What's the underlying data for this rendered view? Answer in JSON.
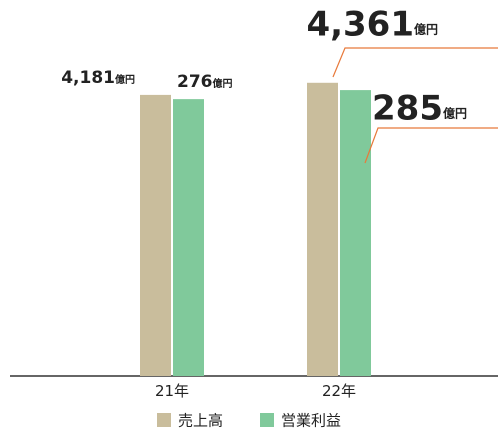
{
  "chart_data": {
    "type": "bar",
    "categories": [
      "21年",
      "22年"
    ],
    "unit": "億円",
    "series": [
      {
        "name": "売上高",
        "color": "#c9bd9c",
        "values": [
          4181,
          4361
        ],
        "value_labels": [
          "4,181",
          "4,361"
        ]
      },
      {
        "name": "営業利益",
        "color": "#80c99b",
        "values": [
          276,
          285
        ],
        "axis": "y2"
      }
    ],
    "ylim": [
      0,
      4700
    ],
    "y2lim": [
      0,
      315
    ],
    "label_line_color": "#e8793a"
  }
}
